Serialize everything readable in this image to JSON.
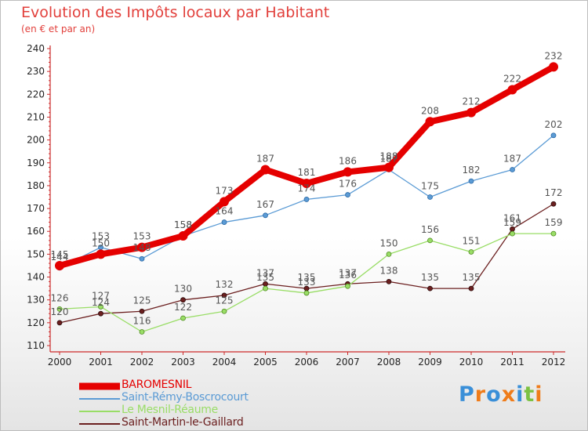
{
  "chart_data": {
    "type": "line",
    "title": "Evolution des Impôts locaux par Habitant",
    "subtitle": "(en € et par an)",
    "xlabel": "",
    "ylabel": "",
    "categories": [
      "2000",
      "2001",
      "2002",
      "2003",
      "2004",
      "2005",
      "2006",
      "2007",
      "2008",
      "2009",
      "2010",
      "2011",
      "2012"
    ],
    "ylim": [
      110,
      240
    ],
    "yticks": [
      110,
      120,
      130,
      140,
      150,
      160,
      170,
      180,
      190,
      200,
      210,
      220,
      230,
      240
    ],
    "grid": false,
    "legend_position": "bottom-left",
    "series": [
      {
        "name": "BAROMESNIL",
        "color": "#e50000",
        "values": [
          145,
          150,
          153,
          158,
          173,
          187,
          181,
          186,
          188,
          208,
          212,
          222,
          232
        ]
      },
      {
        "name": "Saint-Rémy-Boscrocourt",
        "color": "#5b9bd5",
        "values": [
          144,
          153,
          148,
          158,
          164,
          167,
          174,
          176,
          187,
          175,
          182,
          187,
          202
        ]
      },
      {
        "name": "Le Mesnil-Réaume",
        "color": "#99dd66",
        "values": [
          126,
          127,
          116,
          122,
          125,
          135,
          133,
          136,
          150,
          156,
          151,
          159,
          159
        ]
      },
      {
        "name": "Saint-Martin-le-Gaillard",
        "color": "#6b1f1f",
        "values": [
          120,
          124,
          125,
          130,
          132,
          137,
          135,
          137,
          138,
          135,
          135,
          161,
          172
        ]
      }
    ]
  },
  "logo": {
    "letters": [
      {
        "ch": "P",
        "color": "#3a8fd8"
      },
      {
        "ch": "r",
        "color": "#ef7c1a"
      },
      {
        "ch": "o",
        "color": "#3a8fd8"
      },
      {
        "ch": "x",
        "color": "#ef7c1a"
      },
      {
        "ch": "i",
        "color": "#3a8fd8"
      },
      {
        "ch": "t",
        "color": "#7cc142"
      },
      {
        "ch": "i",
        "color": "#ef7c1a"
      }
    ]
  }
}
